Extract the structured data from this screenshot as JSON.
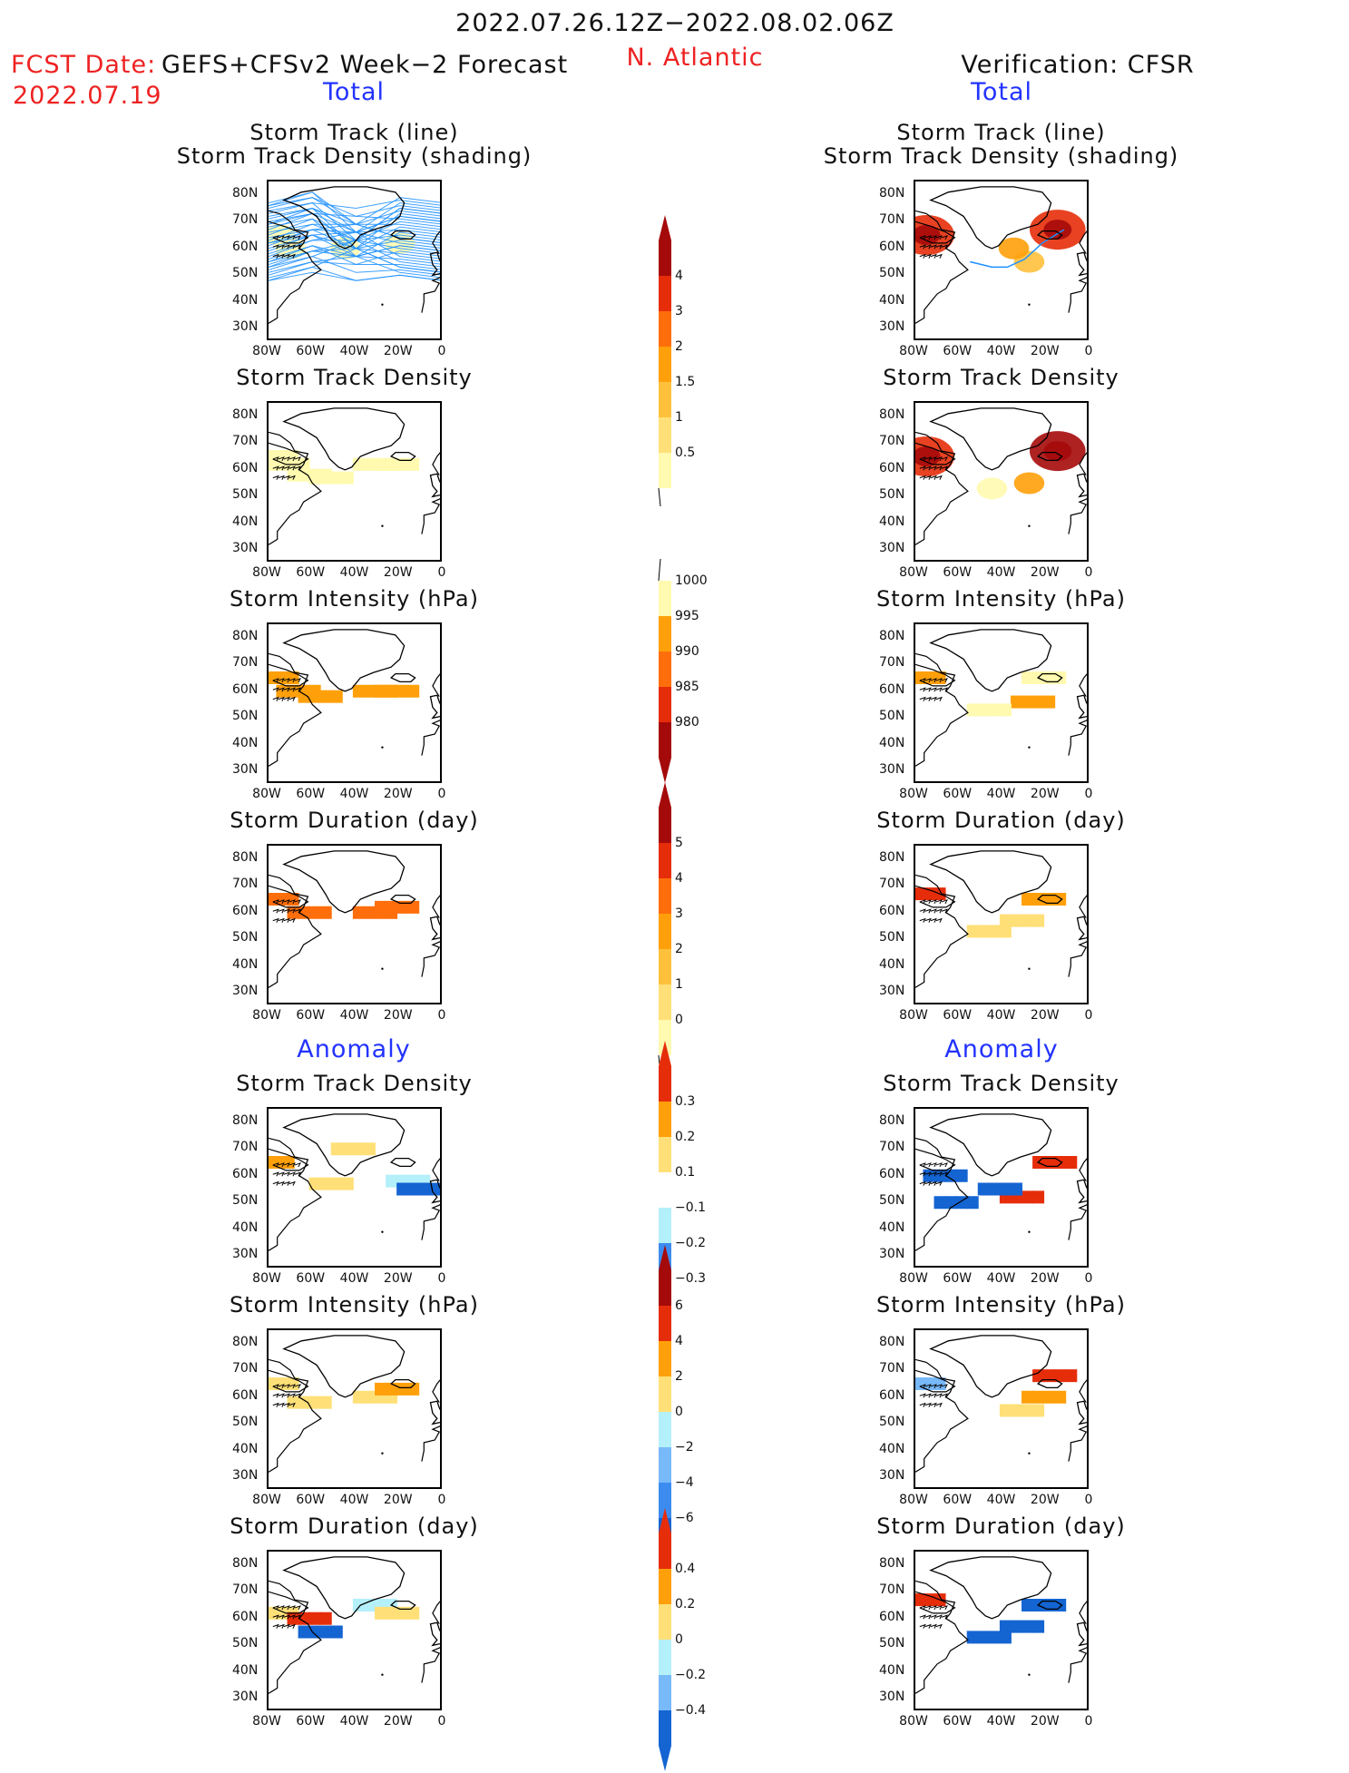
{
  "header": {
    "title": "2022.07.26.12Z−2022.08.02.06Z",
    "fcst_label": "FCST Date:",
    "fcst_model": "GEFS+CFSv2 Week−2 Forecast",
    "fcst_date": "2022.07.19",
    "region": "N. Atlantic",
    "verification": "Verification: CFSR",
    "left_section": "Total",
    "right_section": "Total",
    "left_anomaly": "Anomaly",
    "right_anomaly": "Anomaly"
  },
  "panel_titles": {
    "track": [
      "Storm Track (line)",
      "Storm Track Density (shading)"
    ],
    "density": "Storm Track Density",
    "intensity": "Storm Intensity (hPa)",
    "duration": "Storm Duration (day)"
  },
  "axes": {
    "lat_ticks": [
      "80N",
      "70N",
      "60N",
      "50N",
      "40N",
      "30N"
    ],
    "lon_ticks": [
      "80W",
      "60W",
      "40W",
      "20W",
      "0"
    ]
  },
  "colorbars": {
    "density": [
      "4",
      "3",
      "2",
      "1.5",
      "1",
      "0.5"
    ],
    "intensity": [
      "1000",
      "995",
      "990",
      "985",
      "980"
    ],
    "duration": [
      "5",
      "4",
      "3",
      "2",
      "1",
      "0"
    ],
    "density_anom": [
      "0.3",
      "0.2",
      "0.1",
      "−0.1",
      "−0.2",
      "−0.3"
    ],
    "intensity_anom": [
      "6",
      "4",
      "2",
      "0",
      "−2",
      "−4",
      "−6"
    ],
    "duration_anom": [
      "0.4",
      "0.2",
      "0",
      "−0.2",
      "−0.4"
    ]
  },
  "colors": {
    "red_text": "#ee2222",
    "blue_text": "#2233ff",
    "track_line": "#1e90ff",
    "ramp_warm": [
      "#fffaaf",
      "#ffe078",
      "#ffc13c",
      "#ffa00a",
      "#ff6e0a",
      "#e62d0a",
      "#a50a0a"
    ],
    "ramp_cool": [
      "#b4f0fa",
      "#78b9fa",
      "#3c8cf0",
      "#1464d2"
    ]
  },
  "chart_data": [
    {
      "type": "heatmap",
      "panel": "forecast_storm_track",
      "title": "Storm Track (line) Storm Track Density (shading)",
      "xlim": [
        -80,
        0
      ],
      "ylim": [
        25,
        85
      ],
      "shading": [
        {
          "lon": -75,
          "lat": 65,
          "value": 0.5
        },
        {
          "lon": -70,
          "lat": 60,
          "value": 0.5
        },
        {
          "lon": -45,
          "lat": 60,
          "value": 0.5
        },
        {
          "lon": -20,
          "lat": 62,
          "value": 0.5
        }
      ],
      "note_tracks": "many blue storm track lines spanning 80W-0, 45N-78N"
    },
    {
      "type": "heatmap",
      "panel": "forecast_storm_track_density",
      "title": "Storm Track Density",
      "xlim": [
        -80,
        0
      ],
      "ylim": [
        25,
        85
      ],
      "cells": [
        {
          "lon": -75,
          "lat": 65,
          "value": 0.5
        },
        {
          "lon": -70,
          "lat": 62,
          "value": 0.5
        },
        {
          "lon": -60,
          "lat": 58,
          "value": 0.5
        },
        {
          "lon": -50,
          "lat": 57,
          "value": 0.5
        },
        {
          "lon": -30,
          "lat": 62,
          "value": 0.5
        },
        {
          "lon": -20,
          "lat": 62,
          "value": 0.5
        }
      ]
    },
    {
      "type": "heatmap",
      "panel": "forecast_storm_intensity",
      "title": "Storm Intensity (hPa)",
      "xlim": [
        -80,
        0
      ],
      "ylim": [
        25,
        85
      ],
      "cells": [
        {
          "lon": -75,
          "lat": 65,
          "value": 992
        },
        {
          "lon": -65,
          "lat": 60,
          "value": 992
        },
        {
          "lon": -55,
          "lat": 58,
          "value": 994
        },
        {
          "lon": -30,
          "lat": 60,
          "value": 992
        },
        {
          "lon": -20,
          "lat": 60,
          "value": 992
        }
      ]
    },
    {
      "type": "heatmap",
      "panel": "forecast_storm_duration",
      "title": "Storm Duration (day)",
      "xlim": [
        -80,
        0
      ],
      "ylim": [
        25,
        85
      ],
      "cells": [
        {
          "lon": -75,
          "lat": 65,
          "value": 3.5
        },
        {
          "lon": -60,
          "lat": 60,
          "value": 3.5
        },
        {
          "lon": -30,
          "lat": 60,
          "value": 3.5
        },
        {
          "lon": -20,
          "lat": 62,
          "value": 3.5
        }
      ]
    },
    {
      "type": "heatmap",
      "panel": "verification_storm_track",
      "title": "Storm Track (line) Storm Track Density (shading)",
      "xlim": [
        -80,
        0
      ],
      "ylim": [
        25,
        85
      ],
      "shading": [
        {
          "lon": -75,
          "lat": 65,
          "value": 3.5
        },
        {
          "lon": -15,
          "lat": 67,
          "value": 3.5
        },
        {
          "lon": -28,
          "lat": 55,
          "value": 1
        },
        {
          "lon": -35,
          "lat": 60,
          "value": 1.5
        }
      ],
      "note_tracks": "single storm track line from ~55W,55N east to ~10W,68N"
    },
    {
      "type": "heatmap",
      "panel": "verification_storm_track_density",
      "title": "Storm Track Density",
      "xlim": [
        -80,
        0
      ],
      "ylim": [
        25,
        85
      ],
      "cells": [
        {
          "lon": -75,
          "lat": 65,
          "value": 3.5
        },
        {
          "lon": -15,
          "lat": 67,
          "value": 4
        },
        {
          "lon": -28,
          "lat": 55,
          "value": 1.5
        },
        {
          "lon": -45,
          "lat": 53,
          "value": 0.5
        }
      ]
    },
    {
      "type": "heatmap",
      "panel": "verification_storm_intensity",
      "title": "Storm Intensity (hPa)",
      "xlim": [
        -80,
        0
      ],
      "ylim": [
        25,
        85
      ],
      "cells": [
        {
          "lon": -75,
          "lat": 65,
          "value": 995
        },
        {
          "lon": -20,
          "lat": 65,
          "value": 998
        },
        {
          "lon": -25,
          "lat": 56,
          "value": 994
        },
        {
          "lon": -45,
          "lat": 53,
          "value": 998
        }
      ]
    },
    {
      "type": "heatmap",
      "panel": "verification_storm_duration",
      "title": "Storm Duration (day)",
      "xlim": [
        -80,
        0
      ],
      "ylim": [
        25,
        85
      ],
      "cells": [
        {
          "lon": -75,
          "lat": 67,
          "value": 4.5
        },
        {
          "lon": -20,
          "lat": 65,
          "value": 2.5
        },
        {
          "lon": -30,
          "lat": 57,
          "value": 1.5
        },
        {
          "lon": -45,
          "lat": 53,
          "value": 1.5
        }
      ]
    },
    {
      "type": "heatmap",
      "panel": "forecast_track_density_anomaly",
      "title": "Storm Track Density",
      "xlim": [
        -80,
        0
      ],
      "ylim": [
        25,
        85
      ],
      "cells": [
        {
          "lon": -77,
          "lat": 65,
          "value": 0.25
        },
        {
          "lon": -50,
          "lat": 57,
          "value": 0.1
        },
        {
          "lon": -40,
          "lat": 70,
          "value": 0.1
        },
        {
          "lon": -15,
          "lat": 58,
          "value": -0.15
        },
        {
          "lon": -10,
          "lat": 55,
          "value": -0.3
        }
      ]
    },
    {
      "type": "heatmap",
      "panel": "forecast_intensity_anomaly",
      "title": "Storm Intensity (hPa)",
      "xlim": [
        -80,
        0
      ],
      "ylim": [
        25,
        85
      ],
      "cells": [
        {
          "lon": -75,
          "lat": 65,
          "value": 1
        },
        {
          "lon": -60,
          "lat": 58,
          "value": 1
        },
        {
          "lon": -30,
          "lat": 60,
          "value": 1
        },
        {
          "lon": -20,
          "lat": 63,
          "value": 3
        }
      ]
    },
    {
      "type": "heatmap",
      "panel": "forecast_duration_anomaly",
      "title": "Storm Duration (day)",
      "xlim": [
        -80,
        0
      ],
      "ylim": [
        25,
        85
      ],
      "cells": [
        {
          "lon": -75,
          "lat": 62,
          "value": 0.1
        },
        {
          "lon": -60,
          "lat": 60,
          "value": 0.4
        },
        {
          "lon": -55,
          "lat": 55,
          "value": -0.4
        },
        {
          "lon": -30,
          "lat": 65,
          "value": -0.1
        },
        {
          "lon": -20,
          "lat": 62,
          "value": 0.1
        }
      ]
    },
    {
      "type": "heatmap",
      "panel": "verification_track_density_anomaly",
      "title": "Storm Track Density",
      "xlim": [
        -80,
        0
      ],
      "ylim": [
        25,
        85
      ],
      "cells": [
        {
          "lon": -65,
          "lat": 60,
          "value": -0.3
        },
        {
          "lon": -60,
          "lat": 50,
          "value": -0.3
        },
        {
          "lon": -15,
          "lat": 65,
          "value": 0.3
        },
        {
          "lon": -30,
          "lat": 52,
          "value": 0.3
        },
        {
          "lon": -40,
          "lat": 55,
          "value": -0.3
        }
      ]
    },
    {
      "type": "heatmap",
      "panel": "verification_intensity_anomaly",
      "title": "Storm Intensity (hPa)",
      "xlim": [
        -80,
        0
      ],
      "ylim": [
        25,
        85
      ],
      "cells": [
        {
          "lon": -75,
          "lat": 65,
          "value": -2
        },
        {
          "lon": -15,
          "lat": 68,
          "value": 5
        },
        {
          "lon": -20,
          "lat": 60,
          "value": 3
        },
        {
          "lon": -30,
          "lat": 55,
          "value": 1
        }
      ]
    },
    {
      "type": "heatmap",
      "panel": "verification_duration_anomaly",
      "title": "Storm Duration (day)",
      "xlim": [
        -80,
        0
      ],
      "ylim": [
        25,
        85
      ],
      "cells": [
        {
          "lon": -75,
          "lat": 67,
          "value": 0.4
        },
        {
          "lon": -20,
          "lat": 65,
          "value": -0.4
        },
        {
          "lon": -30,
          "lat": 57,
          "value": -0.4
        },
        {
          "lon": -45,
          "lat": 53,
          "value": -0.4
        }
      ]
    }
  ]
}
